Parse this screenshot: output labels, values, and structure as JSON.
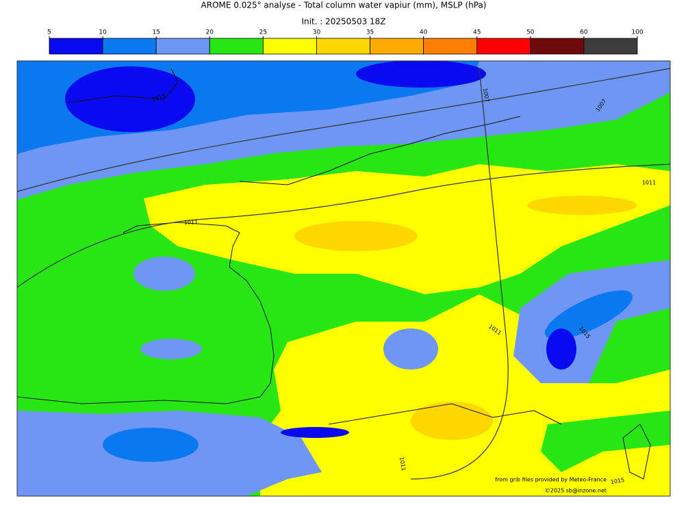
{
  "header": {
    "title": "AROME 0.025° analyse - Total column water vapiur (mm), MSLP (hPa)",
    "init": "Init. : 20250503 18Z"
  },
  "colorbar": {
    "bounds": [
      5,
      10,
      15,
      20,
      25,
      30,
      35,
      40,
      45,
      50,
      60,
      100
    ],
    "colors": [
      "#0a0af0",
      "#0a78f0",
      "#6e96f5",
      "#28e614",
      "#ffff00",
      "#ffd700",
      "#ffaa00",
      "#ff8000",
      "#ff0000",
      "#6e0a0a",
      "#3c3c3c"
    ]
  },
  "contour_labels": [
    "1015",
    "1011",
    "1007",
    "1007",
    "1011",
    "1011",
    "1015",
    "1011",
    "1015"
  ],
  "credits": [
    "from grib files provided by Meteo-France",
    "©2025 sb@inzone.net"
  ]
}
